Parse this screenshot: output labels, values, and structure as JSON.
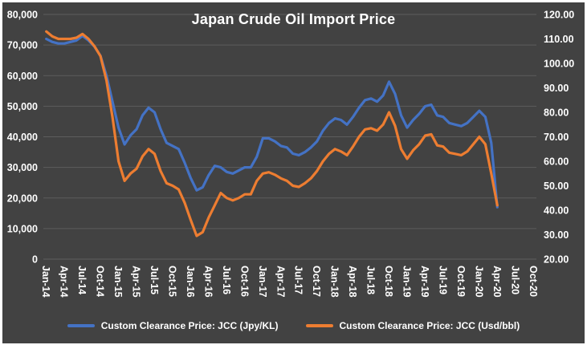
{
  "chart": {
    "background": "#424242",
    "gridline_color": "#5d5d5d",
    "text_color": "#ffffff"
  },
  "chart_data": {
    "type": "line",
    "title": "Japan Crude Oil Import Price",
    "frequency": "monthly",
    "start": "Jan-14",
    "end_of_data": "Apr-20",
    "legend_position": "bottom",
    "grid": true,
    "x_axis": {
      "category_count": 82,
      "tick_every": 3,
      "first_tick": "Jan-14",
      "last_tick": "Oct-20"
    },
    "x_tick_labels": [
      "Jan-14",
      "Apr-14",
      "Jul-14",
      "Oct-14",
      "Jan-15",
      "Apr-15",
      "Jul-15",
      "Oct-15",
      "Jan-16",
      "Apr-16",
      "Jul-16",
      "Oct-16",
      "Jan-17",
      "Apr-17",
      "Jul-17",
      "Oct-17",
      "Jan-18",
      "Apr-18",
      "Jul-18",
      "Oct-18",
      "Jan-19",
      "Apr-19",
      "Jul-19",
      "Oct-19",
      "Jan-20",
      "Apr-20",
      "Jul-20",
      "Oct-20"
    ],
    "left_axis": {
      "min": 0,
      "max": 80000,
      "step": 10000,
      "tick_labels": [
        "0",
        "10,000",
        "20,000",
        "30,000",
        "40,000",
        "50,000",
        "60,000",
        "70,000",
        "80,000"
      ]
    },
    "right_axis": {
      "min": 20,
      "max": 120,
      "step": 10,
      "tick_labels": [
        "20.00",
        "30.00",
        "40.00",
        "50.00",
        "60.00",
        "70.00",
        "80.00",
        "90.00",
        "100.00",
        "110.00",
        "120.00"
      ]
    },
    "series": [
      {
        "name": "Custom Clearance Price: JCC (Jpy/KL)",
        "color": "#4472C4",
        "axis": "left",
        "values": [
          72000,
          71000,
          70500,
          70500,
          71000,
          71500,
          73000,
          71500,
          69500,
          66500,
          60000,
          51500,
          43000,
          37500,
          40500,
          42500,
          47000,
          49500,
          48000,
          42500,
          38000,
          37000,
          36000,
          31500,
          26500,
          22500,
          23500,
          27500,
          30500,
          30000,
          28500,
          28000,
          29000,
          30000,
          30000,
          33500,
          39500,
          39500,
          38500,
          37000,
          36500,
          34500,
          34000,
          35000,
          36500,
          38500,
          42000,
          44500,
          46000,
          45500,
          44000,
          46500,
          49500,
          52000,
          52500,
          51500,
          53500,
          58000,
          54000,
          47000,
          43000,
          45500,
          47500,
          50000,
          50500,
          47000,
          46500,
          44500,
          44000,
          43500,
          44500,
          46500,
          48500,
          46500,
          38000,
          17000
        ]
      },
      {
        "name": "Custom Clearance Price: JCC (Usd/bbl)",
        "color": "#ED7D31",
        "axis": "right",
        "values": [
          113,
          111,
          110,
          110,
          110,
          110.5,
          112,
          110,
          107,
          103,
          93,
          78,
          60,
          52,
          55,
          57,
          62,
          65,
          63,
          56,
          51,
          50,
          48.5,
          43,
          36,
          29.5,
          31,
          37,
          42,
          47,
          45,
          44,
          45,
          46.5,
          46.5,
          52,
          55,
          55.5,
          54.5,
          53,
          52,
          50,
          49.5,
          51,
          53,
          56,
          60,
          63,
          65,
          64,
          62.5,
          66,
          70,
          73,
          73.5,
          72.5,
          75,
          80,
          74.5,
          65,
          61,
          64.5,
          67,
          70.5,
          71,
          66.5,
          66,
          63.5,
          63,
          62.5,
          64,
          67,
          70,
          67,
          55,
          42
        ]
      }
    ]
  }
}
